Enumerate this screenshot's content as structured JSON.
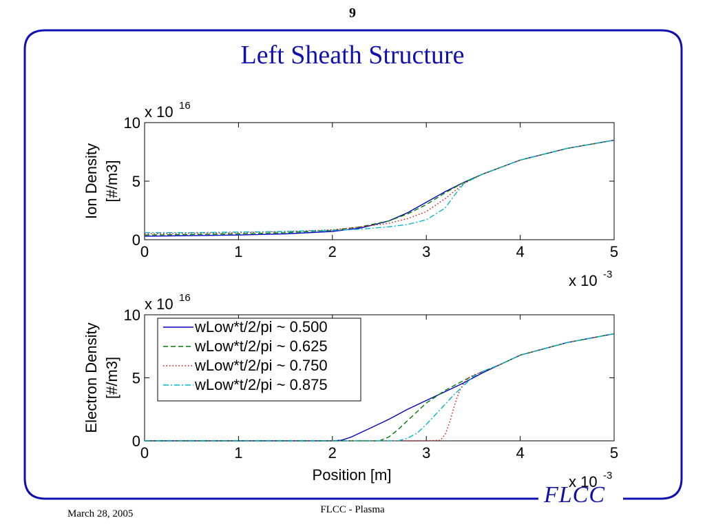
{
  "slide": {
    "page_number": "9",
    "title": "Left Sheath Structure",
    "logo": "FLCC",
    "footer_date": "March 28, 2005",
    "footer_center": "FLCC - Plasma",
    "colors": {
      "title": "#1010b0",
      "frame": "#1010b0"
    }
  },
  "chart_data": [
    {
      "type": "line",
      "ylabel_lines": [
        "Ion Density",
        "[#/m3]"
      ],
      "xlabel": "",
      "y_multiplier": "x 10",
      "y_exponent": "16",
      "x_multiplier": "x 10",
      "x_exponent": "-3",
      "xlim": [
        0,
        5
      ],
      "ylim": [
        0,
        10
      ],
      "xticks": [
        "0",
        "1",
        "2",
        "3",
        "4",
        "5"
      ],
      "yticks": [
        "0",
        "5",
        "10"
      ],
      "legend": null,
      "series": [
        {
          "label": "wLow*t/2/pi ~ 0.500",
          "color": "#0000c0",
          "dash": "",
          "x": [
            0,
            0.5,
            1,
            1.5,
            2,
            2.3,
            2.6,
            2.8,
            3,
            3.2,
            3.4,
            3.6,
            3.8,
            4,
            4.5,
            5
          ],
          "y": [
            0.3,
            0.35,
            0.4,
            0.5,
            0.7,
            1.0,
            1.6,
            2.3,
            3.2,
            4.1,
            4.9,
            5.6,
            6.2,
            6.8,
            7.8,
            8.5
          ]
        },
        {
          "label": "wLow*t/2/pi ~ 0.625",
          "color": "#007a00",
          "dash": "7,4",
          "x": [
            0,
            0.5,
            1,
            1.5,
            2,
            2.3,
            2.6,
            2.8,
            3,
            3.2,
            3.4,
            3.6,
            3.8,
            4,
            4.5,
            5
          ],
          "y": [
            0.4,
            0.45,
            0.5,
            0.6,
            0.8,
            1.1,
            1.6,
            2.2,
            3.0,
            4.0,
            4.9,
            5.6,
            6.2,
            6.8,
            7.8,
            8.5
          ]
        },
        {
          "label": "wLow*t/2/pi ~ 0.750",
          "color": "#e00000",
          "dash": "1.5,3",
          "x": [
            0,
            0.5,
            1,
            1.5,
            2,
            2.3,
            2.6,
            2.8,
            3,
            3.2,
            3.4,
            3.6,
            3.8,
            4,
            4.5,
            5
          ],
          "y": [
            0.5,
            0.55,
            0.6,
            0.7,
            0.85,
            1.1,
            1.4,
            1.8,
            2.4,
            3.5,
            4.8,
            5.6,
            6.2,
            6.8,
            7.8,
            8.5
          ]
        },
        {
          "label": "wLow*t/2/pi ~ 0.875",
          "color": "#00b4c8",
          "dash": "8,3,2,3",
          "x": [
            0,
            0.5,
            1,
            1.5,
            2,
            2.3,
            2.6,
            2.8,
            3,
            3.2,
            3.3,
            3.4,
            3.6,
            3.8,
            4,
            4.5,
            5
          ],
          "y": [
            0.6,
            0.6,
            0.65,
            0.7,
            0.8,
            0.9,
            1.1,
            1.3,
            1.7,
            2.7,
            3.8,
            4.8,
            5.6,
            6.2,
            6.8,
            7.8,
            8.5
          ]
        }
      ]
    },
    {
      "type": "line",
      "ylabel_lines": [
        "Electron Density",
        "[#/m3]"
      ],
      "xlabel": "Position [m]",
      "y_multiplier": "x 10",
      "y_exponent": "16",
      "x_multiplier": "x 10",
      "x_exponent": "-3",
      "xlim": [
        0,
        5
      ],
      "ylim": [
        0,
        10
      ],
      "xticks": [
        "0",
        "1",
        "2",
        "3",
        "4",
        "5"
      ],
      "yticks": [
        "0",
        "5",
        "10"
      ],
      "legend": "top-left",
      "series": [
        {
          "name": "wLow*t/2/pi ~ 0.500",
          "color": "#0000c0",
          "dash": "",
          "x": [
            0,
            1,
            2,
            2.1,
            2.2,
            2.4,
            2.6,
            2.8,
            3,
            3.2,
            3.4,
            3.6,
            3.8,
            4,
            4.5,
            5
          ],
          "y": [
            0,
            0,
            0,
            0.05,
            0.3,
            1.0,
            1.7,
            2.5,
            3.2,
            3.9,
            4.6,
            5.4,
            6.1,
            6.8,
            7.8,
            8.5
          ]
        },
        {
          "name": "wLow*t/2/pi ~ 0.625",
          "color": "#007a00",
          "dash": "7,4",
          "x": [
            0,
            1,
            2,
            2.5,
            2.6,
            2.7,
            2.8,
            2.9,
            3,
            3.2,
            3.4,
            3.6,
            3.8,
            4,
            4.5,
            5
          ],
          "y": [
            0,
            0,
            0,
            0,
            0.3,
            0.9,
            1.6,
            2.3,
            3.0,
            4.0,
            4.8,
            5.5,
            6.1,
            6.8,
            7.8,
            8.5
          ]
        },
        {
          "name": "wLow*t/2/pi ~ 0.750",
          "color": "#e00000",
          "dash": "1.5,3",
          "x": [
            0,
            1,
            2,
            3,
            3.15,
            3.2,
            3.25,
            3.3,
            3.35,
            3.4,
            3.45,
            3.5,
            3.6,
            3.8,
            4,
            4.5,
            5
          ],
          "y": [
            0,
            0,
            0,
            0,
            0.05,
            0.5,
            1.5,
            2.8,
            3.9,
            4.6,
            5.0,
            5.2,
            5.5,
            6.1,
            6.8,
            7.8,
            8.5
          ]
        },
        {
          "name": "wLow*t/2/pi ~ 0.875",
          "color": "#00b4c8",
          "dash": "8,3,2,3",
          "x": [
            0,
            1,
            2,
            2.7,
            2.8,
            2.9,
            3,
            3.1,
            3.2,
            3.3,
            3.4,
            3.5,
            3.6,
            3.8,
            4,
            4.5,
            5
          ],
          "y": [
            0,
            0,
            0,
            0,
            0.2,
            0.6,
            1.3,
            2.1,
            2.9,
            3.7,
            4.4,
            5.1,
            5.5,
            6.1,
            6.8,
            7.8,
            8.5
          ]
        }
      ]
    }
  ]
}
